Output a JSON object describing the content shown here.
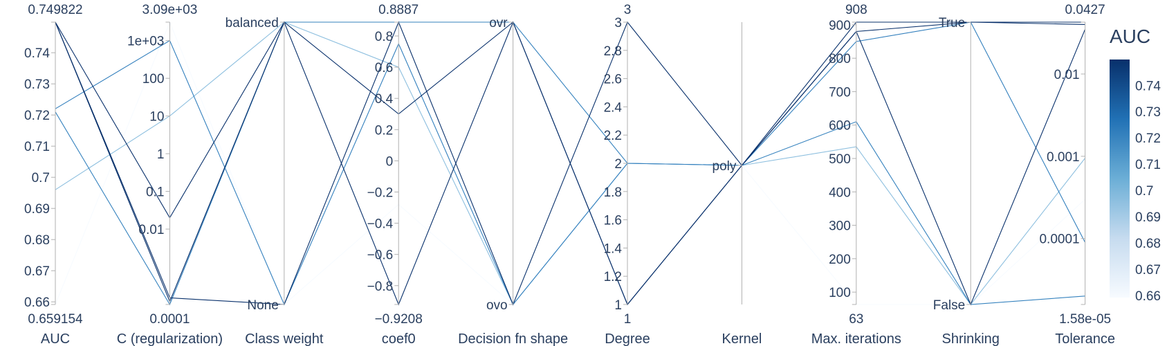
{
  "chart_data": {
    "type": "parallel_coordinates",
    "colorbar": {
      "title": "AUC",
      "ticks": [
        "0.74",
        "0.73",
        "0.72",
        "0.71",
        "0.7",
        "0.69",
        "0.68",
        "0.67",
        "0.66"
      ],
      "range": [
        0.659154,
        0.749822
      ],
      "colors": [
        "#f7fbff",
        "#c6dbef",
        "#6baed6",
        "#2171b5",
        "#08306b"
      ]
    },
    "axes": [
      {
        "key": "auc",
        "label": "AUC",
        "scale": "linear",
        "range": [
          0.659154,
          0.749822
        ],
        "range_labels": [
          "0.749822",
          "0.659154"
        ],
        "ticks": [
          {
            "v": 0.74,
            "t": "0.74"
          },
          {
            "v": 0.73,
            "t": "0.73"
          },
          {
            "v": 0.72,
            "t": "0.72"
          },
          {
            "v": 0.71,
            "t": "0.71"
          },
          {
            "v": 0.7,
            "t": "0.7"
          },
          {
            "v": 0.69,
            "t": "0.69"
          },
          {
            "v": 0.68,
            "t": "0.68"
          },
          {
            "v": 0.67,
            "t": "0.67"
          },
          {
            "v": 0.66,
            "t": "0.66"
          }
        ]
      },
      {
        "key": "c",
        "label": "C (regularization)",
        "scale": "log",
        "range": [
          0.0001,
          3090
        ],
        "range_labels": [
          "3.09e+03",
          "0.0001"
        ],
        "ticks": [
          {
            "v": 1000,
            "t": "1e+03"
          },
          {
            "v": 100,
            "t": "100"
          },
          {
            "v": 10,
            "t": "10"
          },
          {
            "v": 1,
            "t": "1"
          },
          {
            "v": 0.1,
            "t": "0.1"
          },
          {
            "v": 0.01,
            "t": "0.01"
          }
        ]
      },
      {
        "key": "class_weight",
        "label": "Class weight",
        "scale": "categorical",
        "categories": [
          "None",
          "balanced"
        ]
      },
      {
        "key": "coef0",
        "label": "coef0",
        "scale": "linear",
        "range": [
          -0.9208,
          0.8887
        ],
        "range_labels": [
          "0.8887",
          "−0.9208"
        ],
        "ticks": [
          {
            "v": 0.8,
            "t": "0.8"
          },
          {
            "v": 0.6,
            "t": "0.6"
          },
          {
            "v": 0.4,
            "t": "0.4"
          },
          {
            "v": 0.2,
            "t": "0.2"
          },
          {
            "v": 0,
            "t": "0"
          },
          {
            "v": -0.2,
            "t": "−0.2"
          },
          {
            "v": -0.4,
            "t": "−0.4"
          },
          {
            "v": -0.6,
            "t": "−0.6"
          },
          {
            "v": -0.8,
            "t": "−0.8"
          }
        ]
      },
      {
        "key": "dfs",
        "label": "Decision fn shape",
        "scale": "categorical",
        "categories": [
          "ovo",
          "ovr"
        ]
      },
      {
        "key": "degree",
        "label": "Degree",
        "scale": "linear",
        "range": [
          1,
          3
        ],
        "range_labels": [
          "3",
          "1"
        ],
        "ticks": [
          {
            "v": 3,
            "t": "3"
          },
          {
            "v": 2.8,
            "t": "2.8"
          },
          {
            "v": 2.6,
            "t": "2.6"
          },
          {
            "v": 2.4,
            "t": "2.4"
          },
          {
            "v": 2.2,
            "t": "2.2"
          },
          {
            "v": 2,
            "t": "2"
          },
          {
            "v": 1.8,
            "t": "1.8"
          },
          {
            "v": 1.6,
            "t": "1.6"
          },
          {
            "v": 1.4,
            "t": "1.4"
          },
          {
            "v": 1.2,
            "t": "1.2"
          },
          {
            "v": 1,
            "t": "1"
          }
        ]
      },
      {
        "key": "kernel",
        "label": "Kernel",
        "scale": "categorical",
        "categories": [
          "poly"
        ]
      },
      {
        "key": "max_iter",
        "label": "Max. iterations",
        "scale": "linear",
        "range": [
          63,
          908
        ],
        "range_labels": [
          "908",
          "63"
        ],
        "ticks": [
          {
            "v": 900,
            "t": "900"
          },
          {
            "v": 800,
            "t": "800"
          },
          {
            "v": 700,
            "t": "700"
          },
          {
            "v": 600,
            "t": "600"
          },
          {
            "v": 500,
            "t": "500"
          },
          {
            "v": 400,
            "t": "400"
          },
          {
            "v": 300,
            "t": "300"
          },
          {
            "v": 200,
            "t": "200"
          },
          {
            "v": 100,
            "t": "100"
          }
        ]
      },
      {
        "key": "shrinking",
        "label": "Shrinking",
        "scale": "categorical",
        "categories": [
          "False",
          "True"
        ]
      },
      {
        "key": "tol",
        "label": "Tolerance",
        "scale": "log",
        "range": [
          1.58e-05,
          0.0427
        ],
        "range_labels": [
          "0.0427",
          "1.58e-05"
        ],
        "ticks": [
          {
            "v": 0.01,
            "t": "0.01"
          },
          {
            "v": 0.001,
            "t": "0.001"
          },
          {
            "v": 0.0001,
            "t": "0.0001"
          }
        ]
      }
    ],
    "trials": [
      {
        "auc": 0.749822,
        "c": 0.02,
        "class_weight": "balanced",
        "coef0": 0.3,
        "dfs": "ovr",
        "degree": 1,
        "kernel": "poly",
        "max_iter": 908,
        "shrinking": "True",
        "tol": 0.0427
      },
      {
        "auc": 0.749822,
        "c": 0.00012,
        "class_weight": "balanced",
        "coef0": -0.9208,
        "dfs": "ovr",
        "degree": 1,
        "kernel": "poly",
        "max_iter": 880,
        "shrinking": "True",
        "tol": 0.04
      },
      {
        "auc": 0.749822,
        "c": 0.00015,
        "class_weight": "None",
        "coef0": 0.8887,
        "dfs": "ovo",
        "degree": 3,
        "kernel": "poly",
        "max_iter": 880,
        "shrinking": "False",
        "tol": 0.035
      },
      {
        "auc": 0.722,
        "c": 1000,
        "class_weight": "None",
        "coef0": 0.75,
        "dfs": "ovo",
        "degree": 2,
        "kernel": "poly",
        "max_iter": 850,
        "shrinking": "True",
        "tol": 9e-05
      },
      {
        "auc": 0.721,
        "c": 0.0001,
        "class_weight": "balanced",
        "coef0": 0.8887,
        "dfs": "ovr",
        "degree": 2,
        "kernel": "poly",
        "max_iter": 610,
        "shrinking": "False",
        "tol": 2e-05
      },
      {
        "auc": 0.696,
        "c": 10,
        "class_weight": "balanced",
        "coef0": 0.6,
        "dfs": "ovo",
        "degree": 2,
        "kernel": "poly",
        "max_iter": 535,
        "shrinking": "False",
        "tol": 0.00095
      },
      {
        "auc": 0.659154,
        "c": 3090,
        "class_weight": "None",
        "coef0": -0.28,
        "dfs": "ovo",
        "degree": 2,
        "kernel": "poly",
        "max_iter": 63,
        "shrinking": "False",
        "tol": 0.0003
      }
    ]
  }
}
